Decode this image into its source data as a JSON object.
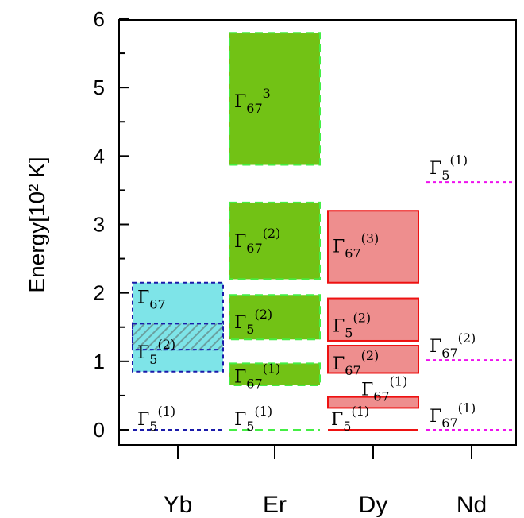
{
  "chart_data": {
    "type": "bar",
    "title": "",
    "xlabel": "",
    "ylabel": "Energy[10² K]",
    "ylim": [
      0,
      6
    ],
    "yticks": [
      "0",
      "1",
      "2",
      "3",
      "4",
      "5",
      "6"
    ],
    "grid": false,
    "categories": [
      "Yb",
      "Er",
      "Dy",
      "Nd"
    ],
    "series": [
      {
        "category": "Yb",
        "color": "#1a1aaa",
        "fill": "#7ee4e8",
        "levels": [
          {
            "label_base": "Γ",
            "label_sub": "5",
            "label_sup": "(1)",
            "low": 0.0,
            "high": 0.0,
            "style": "line"
          },
          {
            "label_base": "Γ",
            "label_sub": "5",
            "label_sup": "(2)",
            "low": 0.85,
            "high": 1.55,
            "style": "band"
          },
          {
            "label_base": "Γ",
            "label_sub": "67",
            "label_sup": "",
            "low": 1.17,
            "high": 2.15,
            "style": "band"
          }
        ]
      },
      {
        "category": "Er",
        "color": "#44ee44",
        "fill": "#72c215",
        "levels": [
          {
            "label_base": "Γ",
            "label_sub": "5",
            "label_sup": "(1)",
            "low": 0.0,
            "high": 0.0,
            "style": "line"
          },
          {
            "label_base": "Γ",
            "label_sub": "67",
            "label_sup": "(1)",
            "low": 0.65,
            "high": 0.97,
            "style": "band"
          },
          {
            "label_base": "Γ",
            "label_sub": "5",
            "label_sup": "(2)",
            "low": 1.32,
            "high": 1.97,
            "style": "band"
          },
          {
            "label_base": "Γ",
            "label_sub": "67",
            "label_sup": "(2)",
            "low": 2.2,
            "high": 3.32,
            "style": "band"
          },
          {
            "label_base": "Γ",
            "label_sub": "67",
            "label_sup": "3",
            "low": 3.87,
            "high": 5.8,
            "style": "band"
          }
        ]
      },
      {
        "category": "Dy",
        "color": "#ee1111",
        "fill": "#ee8e8e",
        "levels": [
          {
            "label_base": "Γ",
            "label_sub": "5",
            "label_sup": "(1)",
            "low": 0.0,
            "high": 0.0,
            "style": "line"
          },
          {
            "label_base": "Γ",
            "label_sub": "67",
            "label_sup": "(1)",
            "low": 0.32,
            "high": 0.48,
            "style": "band"
          },
          {
            "label_base": "Γ",
            "label_sub": "67",
            "label_sup": "(2)",
            "low": 0.83,
            "high": 1.23,
            "style": "band"
          },
          {
            "label_base": "Γ",
            "label_sub": "5",
            "label_sup": "(2)",
            "low": 1.3,
            "high": 1.92,
            "style": "band"
          },
          {
            "label_base": "Γ",
            "label_sub": "67",
            "label_sup": "(3)",
            "low": 2.15,
            "high": 3.2,
            "style": "band"
          }
        ]
      },
      {
        "category": "Nd",
        "color": "#ee11ee",
        "fill": "none",
        "levels": [
          {
            "label_base": "Γ",
            "label_sub": "67",
            "label_sup": "(1)",
            "low": 0.0,
            "high": 0.0,
            "style": "line"
          },
          {
            "label_base": "Γ",
            "label_sub": "67",
            "label_sup": "(2)",
            "low": 1.02,
            "high": 1.02,
            "style": "line"
          },
          {
            "label_base": "Γ",
            "label_sub": "5",
            "label_sup": "(1)",
            "low": 3.62,
            "high": 3.62,
            "style": "line"
          }
        ]
      }
    ]
  }
}
